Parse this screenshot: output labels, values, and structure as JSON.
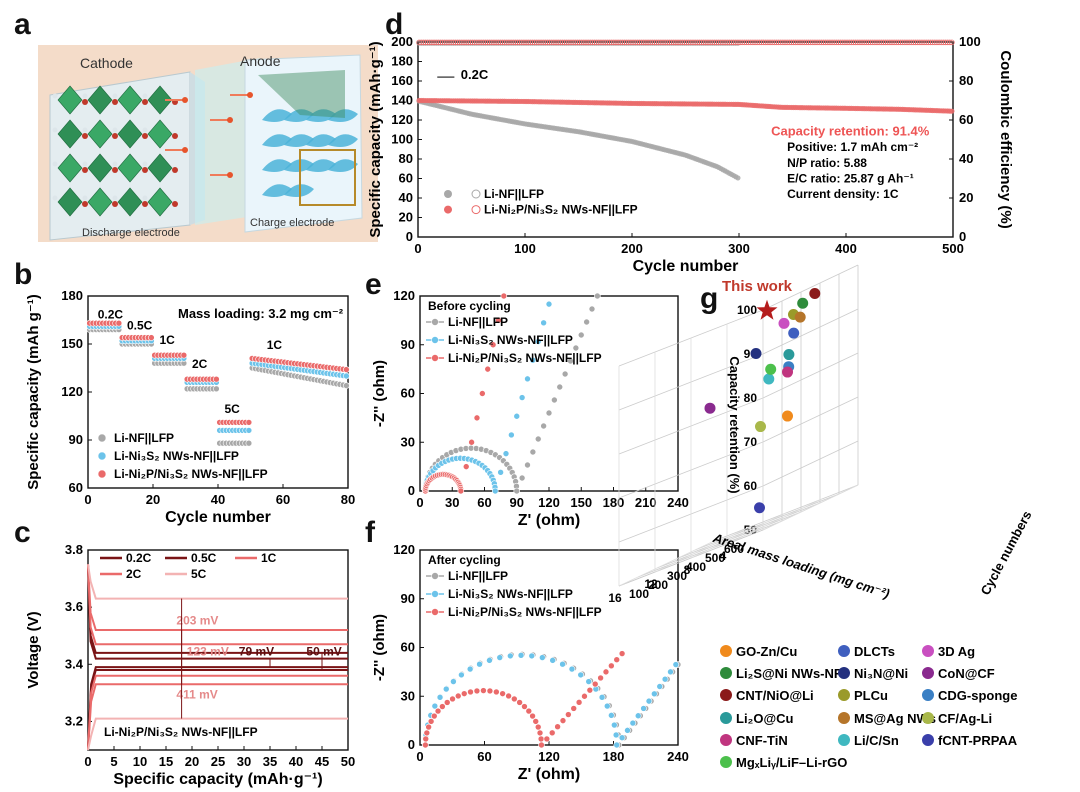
{
  "panel_labels": {
    "a": "a",
    "b": "b",
    "c": "c",
    "d": "d",
    "e": "e",
    "f": "f",
    "g": "g"
  },
  "panel_a": {
    "cathode": "Cathode",
    "anode": "Anode",
    "discharge": "Discharge electrode",
    "charge": "Charge electrode"
  },
  "colors": {
    "gray": "#a8a8a8",
    "blue": "#6cc3ea",
    "red": "#ea6a6a",
    "darkred": "#7a1416",
    "pink": "#f3b3b3"
  },
  "chart_data": [
    {
      "id": "b",
      "type": "scatter",
      "xlabel": "Cycle number",
      "ylabel": "Specific capacity (mAh g⁻¹)",
      "xlim": [
        0,
        80
      ],
      "ylim": [
        60,
        180
      ],
      "xticks": [
        0,
        20,
        40,
        60,
        80
      ],
      "yticks": [
        60,
        90,
        120,
        150,
        180
      ],
      "annotation": "Mass loading: 3.2 mg cm⁻²",
      "rate_labels": [
        {
          "text": "0.2C",
          "x": 3,
          "y": 166
        },
        {
          "text": "0.5C",
          "x": 12,
          "y": 159
        },
        {
          "text": "1C",
          "x": 22,
          "y": 150
        },
        {
          "text": "2C",
          "x": 32,
          "y": 135
        },
        {
          "text": "5C",
          "x": 42,
          "y": 107
        },
        {
          "text": "1C",
          "x": 55,
          "y": 147
        }
      ],
      "segments": [
        [
          0,
          10,
          0.2
        ],
        [
          10,
          20,
          0.5
        ],
        [
          20,
          30,
          1
        ],
        [
          30,
          40,
          2
        ],
        [
          40,
          50,
          5
        ],
        [
          50,
          80,
          1
        ]
      ],
      "series": [
        {
          "name": "Li-NF||LFP",
          "color": "gray",
          "values": [
            159,
            150,
            138,
            122,
            88,
            [
              135,
              124
            ]
          ]
        },
        {
          "name": "Li-Ni₃S₂ NWs-NF||LFP",
          "color": "blue",
          "values": [
            161,
            152,
            141,
            126,
            96,
            [
              138,
              130
            ]
          ]
        },
        {
          "name": "Li-Ni₂P/Ni₃S₂ NWs-NF||LFP",
          "color": "red",
          "values": [
            163,
            154,
            143,
            128,
            101,
            [
              141,
              134
            ]
          ]
        }
      ]
    },
    {
      "id": "c",
      "type": "line",
      "xlabel": "Specific capacity (mAh·g⁻¹)",
      "ylabel": "Voltage (V)",
      "xlim": [
        0,
        50
      ],
      "ylim": [
        3.1,
        3.8
      ],
      "xticks": [
        0,
        5,
        10,
        15,
        20,
        25,
        30,
        35,
        40,
        45,
        50
      ],
      "yticks": [
        3.2,
        3.4,
        3.6,
        3.8
      ],
      "legend": [
        "0.2C",
        "0.5C",
        "1C",
        "2C",
        "5C"
      ],
      "polarization": [
        {
          "text": "203 mV",
          "x": 17,
          "y": 3.54
        },
        {
          "text": "123 mV",
          "x": 19,
          "y": 3.43
        },
        {
          "text": "79 mV",
          "x": 29,
          "y": 3.43
        },
        {
          "text": "50 mV",
          "x": 42,
          "y": 3.43
        },
        {
          "text": "411 mV",
          "x": 17,
          "y": 3.28
        }
      ],
      "cell": "Li-Ni₂P/Ni₃S₂ NWs-NF||LFP",
      "plateaus": [
        {
          "rate": "0.2C",
          "color": "darkred",
          "charge": 3.42,
          "discharge": 3.39
        },
        {
          "rate": "0.5C",
          "color": "darkred",
          "charge": 3.44,
          "discharge": 3.38
        },
        {
          "rate": "1C",
          "color": "red",
          "charge": 3.47,
          "discharge": 3.36
        },
        {
          "rate": "2C",
          "color": "red",
          "charge": 3.52,
          "discharge": 3.33
        },
        {
          "rate": "5C",
          "color": "pink",
          "charge": 3.63,
          "discharge": 3.21
        }
      ]
    },
    {
      "id": "d",
      "type": "scatter",
      "xlabel": "Cycle number",
      "ylabel": "Specific capacity (mAh·g⁻¹)",
      "y2label": "Coulombic efficiency (%)",
      "xlim": [
        0,
        500
      ],
      "ylim": [
        0,
        200
      ],
      "y2lim": [
        0,
        100
      ],
      "xticks": [
        0,
        100,
        200,
        300,
        400,
        500
      ],
      "yticks": [
        0,
        20,
        40,
        60,
        80,
        100,
        120,
        140,
        160,
        180,
        200
      ],
      "y2ticks": [
        0,
        20,
        40,
        60,
        80,
        100
      ],
      "rate_label": "0.2C",
      "retention": "Capacity retention: 91.4%",
      "info": [
        "Positive: 1.7 mAh cm⁻²",
        "N/P ratio: 5.88",
        "E/C ratio: 25.87 g Ah⁻¹",
        "Current density: 1C"
      ],
      "series": [
        {
          "name": "Li-NF||LFP",
          "color": "gray",
          "capacity_points": [
            [
              2,
              139
            ],
            [
              50,
              126
            ],
            [
              100,
              116
            ],
            [
              150,
              108
            ],
            [
              200,
              98
            ],
            [
              250,
              84
            ],
            [
              280,
              72
            ],
            [
              300,
              60
            ]
          ],
          "ce": 99.5
        },
        {
          "name": "Li-Ni₂P/Ni₃S₂ NWs-NF||LFP",
          "color": "red",
          "capacity_points": [
            [
              2,
              140
            ],
            [
              100,
              139
            ],
            [
              200,
              137
            ],
            [
              300,
              136
            ],
            [
              340,
              133
            ],
            [
              400,
              132
            ],
            [
              450,
              131
            ],
            [
              500,
              129
            ]
          ],
          "ce": 99.8
        }
      ]
    },
    {
      "id": "e",
      "type": "scatter",
      "xlabel": "Z' (ohm)",
      "ylabel": "-Z'' (ohm)",
      "xlim": [
        0,
        240
      ],
      "ylim": [
        0,
        120
      ],
      "xticks": [
        0,
        30,
        60,
        90,
        120,
        150,
        180,
        210,
        240
      ],
      "yticks": [
        0,
        30,
        60,
        90,
        120
      ],
      "title": "Before cycling",
      "series": [
        {
          "name": "Li-NF||LFP",
          "color": "gray",
          "r0": 5,
          "rct": 85,
          "tail_k": 1.6
        },
        {
          "name": "Li-Ni₃S₂ NWs-NF||LFP",
          "color": "blue",
          "r0": 5,
          "rct": 65,
          "tail_k": 2.3
        },
        {
          "name": "Li-Ni₂P/Ni₃S₂ NWs-NF||LFP",
          "color": "red",
          "r0": 5,
          "rct": 33,
          "tail_k": 3.0
        }
      ]
    },
    {
      "id": "f",
      "type": "scatter",
      "xlabel": "Z' (ohm)",
      "ylabel": "-Z'' (ohm)",
      "xlim": [
        0,
        240
      ],
      "ylim": [
        0,
        120
      ],
      "xticks": [
        0,
        60,
        120,
        180,
        240
      ],
      "yticks": [
        0,
        30,
        60,
        90,
        120
      ],
      "title": "After cycling",
      "series": [
        {
          "name": "Li-NF||LFP",
          "color": "gray",
          "r0": 5,
          "rct": 180,
          "tail_k": 0.9
        },
        {
          "name": "Li-Ni₃S₂ NWs-NF||LFP",
          "color": "blue",
          "r0": 5,
          "rct": 178,
          "tail_k": 0.9
        },
        {
          "name": "Li-Ni₂P/Ni₃S₂ NWs-NF||LFP",
          "color": "red",
          "r0": 5,
          "rct": 108,
          "tail_k": 0.75
        }
      ]
    },
    {
      "id": "g",
      "type": "scatter3d",
      "xlabel": "Areal mass loading (mg cm⁻²)",
      "ylabel": "Cycle numbers",
      "zlabel": "Capacity retention (%)",
      "xticks": [
        4,
        8,
        12,
        16
      ],
      "yticks": [
        100,
        200,
        300,
        400,
        500,
        600
      ],
      "zticks": [
        50,
        60,
        70,
        80,
        90,
        100
      ],
      "this_work": "This work",
      "points": [
        {
          "name": "GO-Zn/Cu",
          "color": "#f08a1c",
          "x": 1.5,
          "y": 300,
          "z": 73
        },
        {
          "name": "DLCTs",
          "color": "#3f5fbf",
          "x": 2.5,
          "y": 380,
          "z": 91
        },
        {
          "name": "3D Ag",
          "color": "#c94fc0",
          "x": 4,
          "y": 400,
          "z": 94
        },
        {
          "name": "Li₂S@Ni NWs-NF",
          "color": "#2e8b3b",
          "x": 1.5,
          "y": 380,
          "z": 97
        },
        {
          "name": "Ni₃N@Ni",
          "color": "#23307f",
          "x": 5,
          "y": 300,
          "z": 90
        },
        {
          "name": "CoN@CF",
          "color": "#8a2a8f",
          "x": 8,
          "y": 200,
          "z": 82
        },
        {
          "name": "CNT/NiO@Li",
          "color": "#8b1a1a",
          "x": 1,
          "y": 420,
          "z": 98
        },
        {
          "name": "PLCu",
          "color": "#9a9a2a",
          "x": 4,
          "y": 450,
          "z": 95
        },
        {
          "name": "CDG-sponge",
          "color": "#3a7fc4",
          "x": 2,
          "y": 330,
          "z": 84
        },
        {
          "name": "Li₂O@Cu",
          "color": "#2a9a9a",
          "x": 0.5,
          "y": 260,
          "z": 87
        },
        {
          "name": "MS@Ag NWs",
          "color": "#b5752a",
          "x": 2.2,
          "y": 400,
          "z": 94
        },
        {
          "name": "CF/Ag-Li",
          "color": "#a9b84a",
          "x": 4.5,
          "y": 300,
          "z": 73
        },
        {
          "name": "CNF-TiN",
          "color": "#c0357f",
          "x": 1.5,
          "y": 300,
          "z": 83
        },
        {
          "name": "Li/C/Sn",
          "color": "#3fb8c0",
          "x": 4,
          "y": 320,
          "z": 83
        },
        {
          "name": "fCNT-PRPAA",
          "color": "#3a3faa",
          "x": 2.5,
          "y": 200,
          "z": 55
        },
        {
          "name": "MgₓLiᵧ/LiF–Li-rGO",
          "color": "#4cc04c",
          "x": 4,
          "y": 330,
          "z": 85
        },
        {
          "name": "This work",
          "color": "#b51c1c",
          "x": 8,
          "y": 500,
          "z": 98,
          "star": true
        }
      ]
    }
  ]
}
